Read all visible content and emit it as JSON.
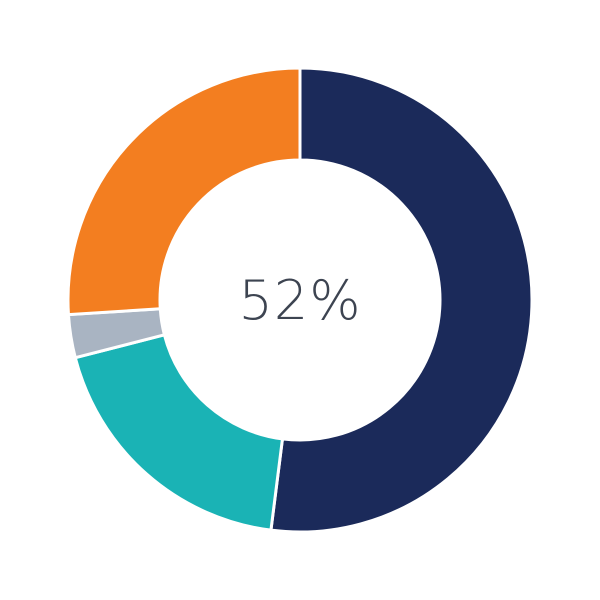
{
  "chart_data": {
    "type": "pie",
    "variant": "donut",
    "center_label": "52%",
    "start": "top",
    "direction": "clockwise",
    "slices": [
      {
        "value": 52,
        "color": "#1b2a5a"
      },
      {
        "value": 19,
        "color": "#1ab3b5"
      },
      {
        "value": 3,
        "color": "#a9b4c2"
      },
      {
        "value": 26,
        "color": "#f37e20"
      }
    ]
  }
}
